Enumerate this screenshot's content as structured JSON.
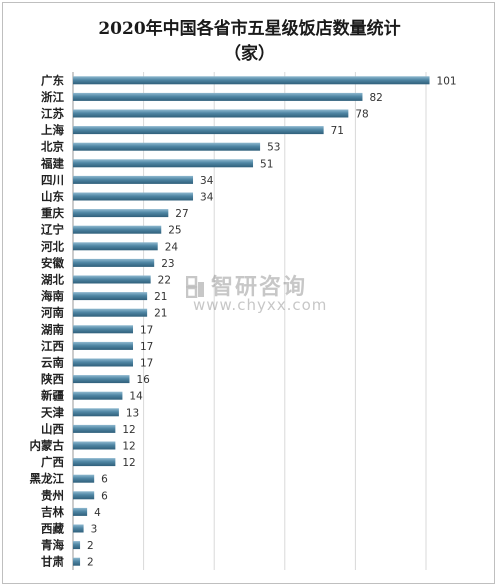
{
  "watermark": {
    "chinese": "智研咨询",
    "url": "www.chyxx.com"
  },
  "chart_data": {
    "type": "bar",
    "orientation": "horizontal",
    "title_line1": "2020年中国各省市五星级饭店数量统计",
    "title_line2": "（家）",
    "categories": [
      "广东",
      "浙江",
      "江苏",
      "上海",
      "北京",
      "福建",
      "四川",
      "山东",
      "重庆",
      "辽宁",
      "河北",
      "安徽",
      "湖北",
      "海南",
      "河南",
      "湖南",
      "江西",
      "云南",
      "陕西",
      "新疆",
      "天津",
      "山西",
      "内蒙古",
      "广西",
      "黑龙江",
      "贵州",
      "吉林",
      "西藏",
      "青海",
      "甘肃"
    ],
    "values": [
      101,
      82,
      78,
      71,
      53,
      51,
      34,
      34,
      27,
      25,
      24,
      23,
      22,
      21,
      21,
      17,
      17,
      17,
      16,
      14,
      13,
      12,
      12,
      12,
      6,
      6,
      4,
      3,
      2,
      2
    ],
    "xlim": [
      0,
      120
    ],
    "grid": true,
    "bar_color": "#4a7f9c"
  }
}
